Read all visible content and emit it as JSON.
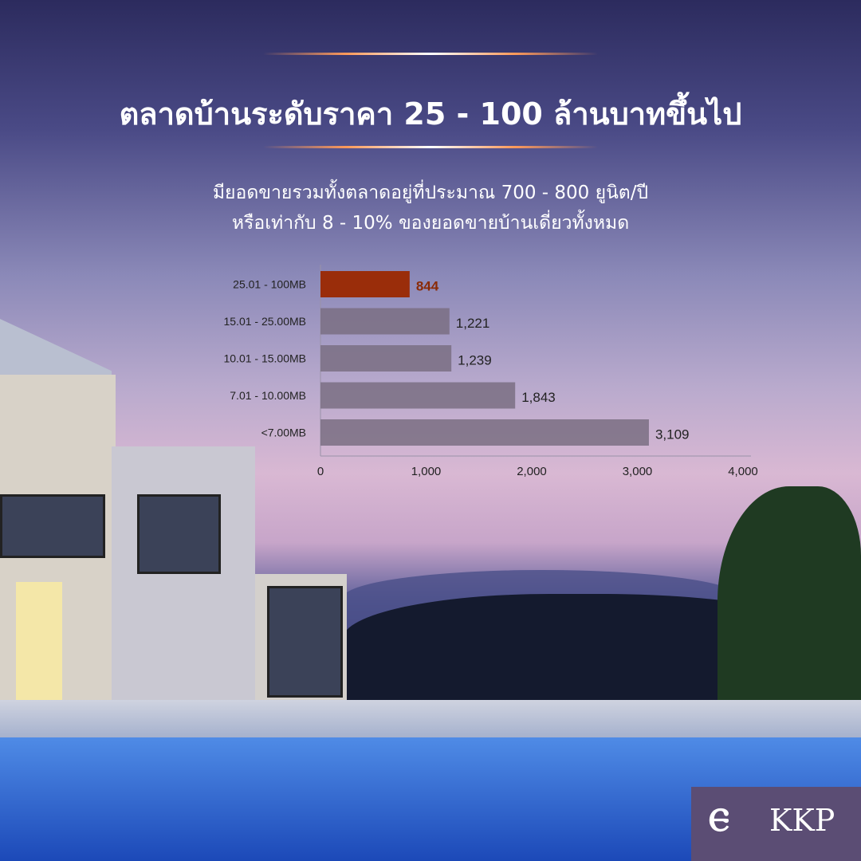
{
  "header": {
    "title": "ตลาดบ้านระดับราคา 25 - 100 ล้านบาทขึ้นไป",
    "subtitle_line1": "มียอดขายรวมทั้งตลาดอยู่ที่ประมาณ 700 - 800 ยูนิต/ปี",
    "subtitle_line2": "หรือเท่ากับ 8 - 10% ของยอดขายบ้านเดี่ยวทั้งหมด"
  },
  "chart_data": {
    "type": "bar",
    "orientation": "horizontal",
    "categories": [
      "25.01 - 100MB",
      "15.01 - 25.00MB",
      "10.01 - 15.00MB",
      "7.01 - 10.00MB",
      "<7.00MB"
    ],
    "values": [
      844,
      1221,
      1239,
      1843,
      3109
    ],
    "value_labels": [
      "844",
      "1,221",
      "1,239",
      "1,843",
      "3,109"
    ],
    "xlim": [
      0,
      4000
    ],
    "xticks": [
      0,
      1000,
      2000,
      3000,
      4000
    ],
    "xtick_labels": [
      "0",
      "1,000",
      "2,000",
      "3,000",
      "4,000"
    ],
    "grid": false,
    "colors": {
      "highlight": "#9a2d0a",
      "default": "#7a6e82",
      "highlight_label": "#8a2a05",
      "label": "#222222"
    }
  },
  "logo": {
    "text": "KKP"
  }
}
